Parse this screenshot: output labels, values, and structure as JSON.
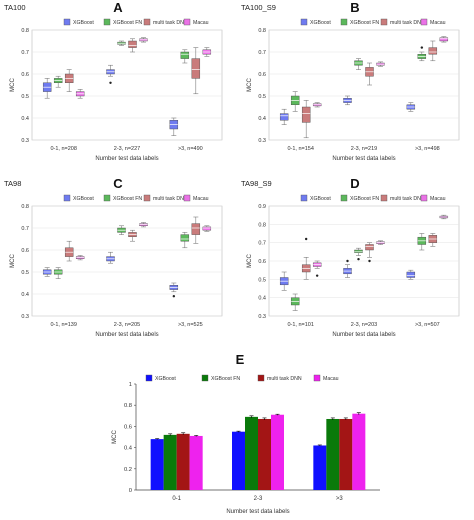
{
  "legend": {
    "boxes": [
      "XGBoost",
      "XGBoost FN",
      "multi task DNN",
      "Macau"
    ],
    "bars": [
      "XGBoost",
      "XGBoost FN",
      "multi task DNN",
      "Macau"
    ]
  },
  "colors": {
    "box": {
      "XGBoost": "#6f7bf0",
      "XGBoost FN": "#5cb85c",
      "multi task DNN": "#c97b7b",
      "Macau": "#ea72e6"
    },
    "bar": {
      "XGBoost": "#1010ff",
      "XGBoost FN": "#0a7a0a",
      "multi task DNN": "#a31515",
      "Macau": "#ee22ee"
    }
  },
  "chart_data": [
    {
      "type": "box",
      "panel_letter": "A",
      "title": "TA100",
      "xlabel": "Number test data labels",
      "ylabel": "MCC",
      "ylim": [
        0.3,
        0.8
      ],
      "yticks": [
        "0.3",
        "0.4",
        "0.5",
        "0.6",
        "0.7",
        "0.8"
      ],
      "grid": true,
      "categories": [
        "0-1, n=208",
        "2-3, n=227",
        ">3, n=490"
      ],
      "series": [
        {
          "name": "XGBoost",
          "boxes": [
            {
              "q1": 0.52,
              "med": 0.54,
              "q3": 0.56,
              "lo": 0.49,
              "hi": 0.58,
              "out": []
            },
            {
              "q1": 0.6,
              "med": 0.61,
              "q3": 0.62,
              "lo": 0.59,
              "hi": 0.64,
              "out": [
                0.56
              ]
            },
            {
              "q1": 0.35,
              "med": 0.37,
              "q3": 0.39,
              "lo": 0.32,
              "hi": 0.4,
              "out": []
            }
          ]
        },
        {
          "name": "XGBoost FN",
          "boxes": [
            {
              "q1": 0.56,
              "med": 0.57,
              "q3": 0.58,
              "lo": 0.54,
              "hi": 0.59,
              "out": []
            },
            {
              "q1": 0.735,
              "med": 0.74,
              "q3": 0.745,
              "lo": 0.73,
              "hi": 0.75,
              "out": []
            },
            {
              "q1": 0.67,
              "med": 0.69,
              "q3": 0.7,
              "lo": 0.65,
              "hi": 0.71,
              "out": []
            }
          ]
        },
        {
          "name": "multi task DNN",
          "boxes": [
            {
              "q1": 0.56,
              "med": 0.58,
              "q3": 0.6,
              "lo": 0.52,
              "hi": 0.62,
              "out": []
            },
            {
              "q1": 0.72,
              "med": 0.73,
              "q3": 0.75,
              "lo": 0.7,
              "hi": 0.76,
              "out": []
            },
            {
              "q1": 0.58,
              "med": 0.62,
              "q3": 0.67,
              "lo": 0.51,
              "hi": 0.72,
              "out": []
            }
          ]
        },
        {
          "name": "Macau",
          "boxes": [
            {
              "q1": 0.5,
              "med": 0.51,
              "q3": 0.52,
              "lo": 0.49,
              "hi": 0.53,
              "out": []
            },
            {
              "q1": 0.75,
              "med": 0.755,
              "q3": 0.76,
              "lo": 0.745,
              "hi": 0.765,
              "out": []
            },
            {
              "q1": 0.69,
              "med": 0.7,
              "q3": 0.71,
              "lo": 0.68,
              "hi": 0.72,
              "out": []
            }
          ]
        }
      ]
    },
    {
      "type": "box",
      "panel_letter": "B",
      "title": "TA100_S9",
      "xlabel": "Number test data labels",
      "ylabel": "MCC",
      "ylim": [
        0.3,
        0.8
      ],
      "yticks": [
        "0.3",
        "0.4",
        "0.5",
        "0.6",
        "0.7",
        "0.8"
      ],
      "grid": true,
      "categories": [
        "0-1, n=154",
        "2-3, n=219",
        ">3, n=498"
      ],
      "series": [
        {
          "name": "XGBoost",
          "boxes": [
            {
              "q1": 0.39,
              "med": 0.41,
              "q3": 0.42,
              "lo": 0.37,
              "hi": 0.44,
              "out": []
            },
            {
              "q1": 0.47,
              "med": 0.48,
              "q3": 0.49,
              "lo": 0.46,
              "hi": 0.5,
              "out": []
            },
            {
              "q1": 0.44,
              "med": 0.45,
              "q3": 0.46,
              "lo": 0.43,
              "hi": 0.47,
              "out": []
            }
          ]
        },
        {
          "name": "XGBoost FN",
          "boxes": [
            {
              "q1": 0.46,
              "med": 0.48,
              "q3": 0.5,
              "lo": 0.43,
              "hi": 0.52,
              "out": []
            },
            {
              "q1": 0.64,
              "med": 0.65,
              "q3": 0.66,
              "lo": 0.62,
              "hi": 0.67,
              "out": []
            },
            {
              "q1": 0.67,
              "med": 0.68,
              "q3": 0.69,
              "lo": 0.66,
              "hi": 0.7,
              "out": [
                0.72
              ]
            }
          ]
        },
        {
          "name": "multi task DNN",
          "boxes": [
            {
              "q1": 0.38,
              "med": 0.42,
              "q3": 0.45,
              "lo": 0.31,
              "hi": 0.48,
              "out": []
            },
            {
              "q1": 0.59,
              "med": 0.61,
              "q3": 0.63,
              "lo": 0.55,
              "hi": 0.65,
              "out": []
            },
            {
              "q1": 0.69,
              "med": 0.7,
              "q3": 0.72,
              "lo": 0.66,
              "hi": 0.75,
              "out": []
            }
          ]
        },
        {
          "name": "Macau",
          "boxes": [
            {
              "q1": 0.455,
              "med": 0.46,
              "q3": 0.465,
              "lo": 0.45,
              "hi": 0.47,
              "out": []
            },
            {
              "q1": 0.64,
              "med": 0.645,
              "q3": 0.65,
              "lo": 0.635,
              "hi": 0.655,
              "out": []
            },
            {
              "q1": 0.75,
              "med": 0.76,
              "q3": 0.765,
              "lo": 0.745,
              "hi": 0.77,
              "out": []
            }
          ]
        }
      ]
    },
    {
      "type": "box",
      "panel_letter": "C",
      "title": "TA98",
      "xlabel": "Number test data labels",
      "ylabel": "MCC",
      "ylim": [
        0.3,
        0.8
      ],
      "yticks": [
        "0.3",
        "0.4",
        "0.5",
        "0.6",
        "0.7",
        "0.8"
      ],
      "grid": true,
      "categories": [
        "0-1, n=139",
        "2-3, n=205",
        ">3, n=525"
      ],
      "series": [
        {
          "name": "XGBoost",
          "boxes": [
            {
              "q1": 0.49,
              "med": 0.5,
              "q3": 0.51,
              "lo": 0.48,
              "hi": 0.52,
              "out": []
            },
            {
              "q1": 0.55,
              "med": 0.56,
              "q3": 0.57,
              "lo": 0.54,
              "hi": 0.59,
              "out": []
            },
            {
              "q1": 0.42,
              "med": 0.43,
              "q3": 0.44,
              "lo": 0.41,
              "hi": 0.45,
              "out": [
                0.39
              ]
            }
          ]
        },
        {
          "name": "XGBoost FN",
          "boxes": [
            {
              "q1": 0.49,
              "med": 0.5,
              "q3": 0.51,
              "lo": 0.47,
              "hi": 0.52,
              "out": []
            },
            {
              "q1": 0.68,
              "med": 0.69,
              "q3": 0.7,
              "lo": 0.67,
              "hi": 0.71,
              "out": []
            },
            {
              "q1": 0.64,
              "med": 0.65,
              "q3": 0.67,
              "lo": 0.61,
              "hi": 0.68,
              "out": []
            }
          ]
        },
        {
          "name": "multi task DNN",
          "boxes": [
            {
              "q1": 0.57,
              "med": 0.59,
              "q3": 0.61,
              "lo": 0.55,
              "hi": 0.64,
              "out": []
            },
            {
              "q1": 0.66,
              "med": 0.67,
              "q3": 0.68,
              "lo": 0.64,
              "hi": 0.69,
              "out": []
            },
            {
              "q1": 0.67,
              "med": 0.7,
              "q3": 0.72,
              "lo": 0.63,
              "hi": 0.75,
              "out": []
            }
          ]
        },
        {
          "name": "Macau",
          "boxes": [
            {
              "q1": 0.56,
              "med": 0.565,
              "q3": 0.57,
              "lo": 0.555,
              "hi": 0.575,
              "out": []
            },
            {
              "q1": 0.71,
              "med": 0.715,
              "q3": 0.72,
              "lo": 0.705,
              "hi": 0.725,
              "out": []
            },
            {
              "q1": 0.69,
              "med": 0.7,
              "q3": 0.705,
              "lo": 0.685,
              "hi": 0.71,
              "out": []
            }
          ]
        }
      ]
    },
    {
      "type": "box",
      "panel_letter": "D",
      "title": "TA98_S9",
      "xlabel": "Number test data labels",
      "ylabel": "MCC",
      "ylim": [
        0.3,
        0.9
      ],
      "yticks": [
        "0.3",
        "0.4",
        "0.5",
        "0.6",
        "0.7",
        "0.8",
        "0.9"
      ],
      "grid": true,
      "categories": [
        "0-1, n=101",
        "2-3, n=203",
        ">3, n=507"
      ],
      "series": [
        {
          "name": "XGBoost",
          "boxes": [
            {
              "q1": 0.47,
              "med": 0.49,
              "q3": 0.51,
              "lo": 0.44,
              "hi": 0.54,
              "out": []
            },
            {
              "q1": 0.53,
              "med": 0.545,
              "q3": 0.56,
              "lo": 0.51,
              "hi": 0.58,
              "out": [
                0.6
              ]
            },
            {
              "q1": 0.51,
              "med": 0.52,
              "q3": 0.54,
              "lo": 0.5,
              "hi": 0.55,
              "out": []
            }
          ]
        },
        {
          "name": "XGBoost FN",
          "boxes": [
            {
              "q1": 0.36,
              "med": 0.38,
              "q3": 0.4,
              "lo": 0.33,
              "hi": 0.42,
              "out": []
            },
            {
              "q1": 0.645,
              "med": 0.65,
              "q3": 0.66,
              "lo": 0.63,
              "hi": 0.67,
              "out": [
                0.61
              ]
            },
            {
              "q1": 0.69,
              "med": 0.71,
              "q3": 0.73,
              "lo": 0.66,
              "hi": 0.75,
              "out": []
            }
          ]
        },
        {
          "name": "multi task DNN",
          "boxes": [
            {
              "q1": 0.54,
              "med": 0.56,
              "q3": 0.58,
              "lo": 0.5,
              "hi": 0.62,
              "out": [
                0.72
              ]
            },
            {
              "q1": 0.66,
              "med": 0.68,
              "q3": 0.69,
              "lo": 0.62,
              "hi": 0.7,
              "out": [
                0.6
              ]
            },
            {
              "q1": 0.7,
              "med": 0.72,
              "q3": 0.74,
              "lo": 0.68,
              "hi": 0.75,
              "out": []
            }
          ]
        },
        {
          "name": "Macau",
          "boxes": [
            {
              "q1": 0.57,
              "med": 0.58,
              "q3": 0.59,
              "lo": 0.56,
              "hi": 0.6,
              "out": [
                0.52
              ]
            },
            {
              "q1": 0.695,
              "med": 0.7,
              "q3": 0.705,
              "lo": 0.69,
              "hi": 0.71,
              "out": []
            },
            {
              "q1": 0.835,
              "med": 0.84,
              "q3": 0.845,
              "lo": 0.83,
              "hi": 0.85,
              "out": []
            }
          ]
        }
      ]
    },
    {
      "type": "bar",
      "panel_letter": "E",
      "title": "",
      "xlabel": "Number test data labels",
      "ylabel": "MCC",
      "ylim": [
        0,
        1
      ],
      "yticks": [
        "0",
        "0.2",
        "0.4",
        "0.6",
        "0.8",
        "1"
      ],
      "grid": false,
      "categories": [
        "0-1",
        "2-3",
        ">3"
      ],
      "series": [
        {
          "name": "XGBoost",
          "values": [
            0.48,
            0.55,
            0.42
          ],
          "errors": [
            0.005,
            0.005,
            0.005
          ]
        },
        {
          "name": "XGBoost FN",
          "values": [
            0.52,
            0.69,
            0.67
          ],
          "errors": [
            0.01,
            0.01,
            0.01
          ]
        },
        {
          "name": "multi task DNN",
          "values": [
            0.53,
            0.67,
            0.67
          ],
          "errors": [
            0.01,
            0.01,
            0.01
          ]
        },
        {
          "name": "Macau",
          "values": [
            0.51,
            0.71,
            0.72
          ],
          "errors": [
            0.005,
            0.005,
            0.01
          ]
        }
      ]
    }
  ]
}
